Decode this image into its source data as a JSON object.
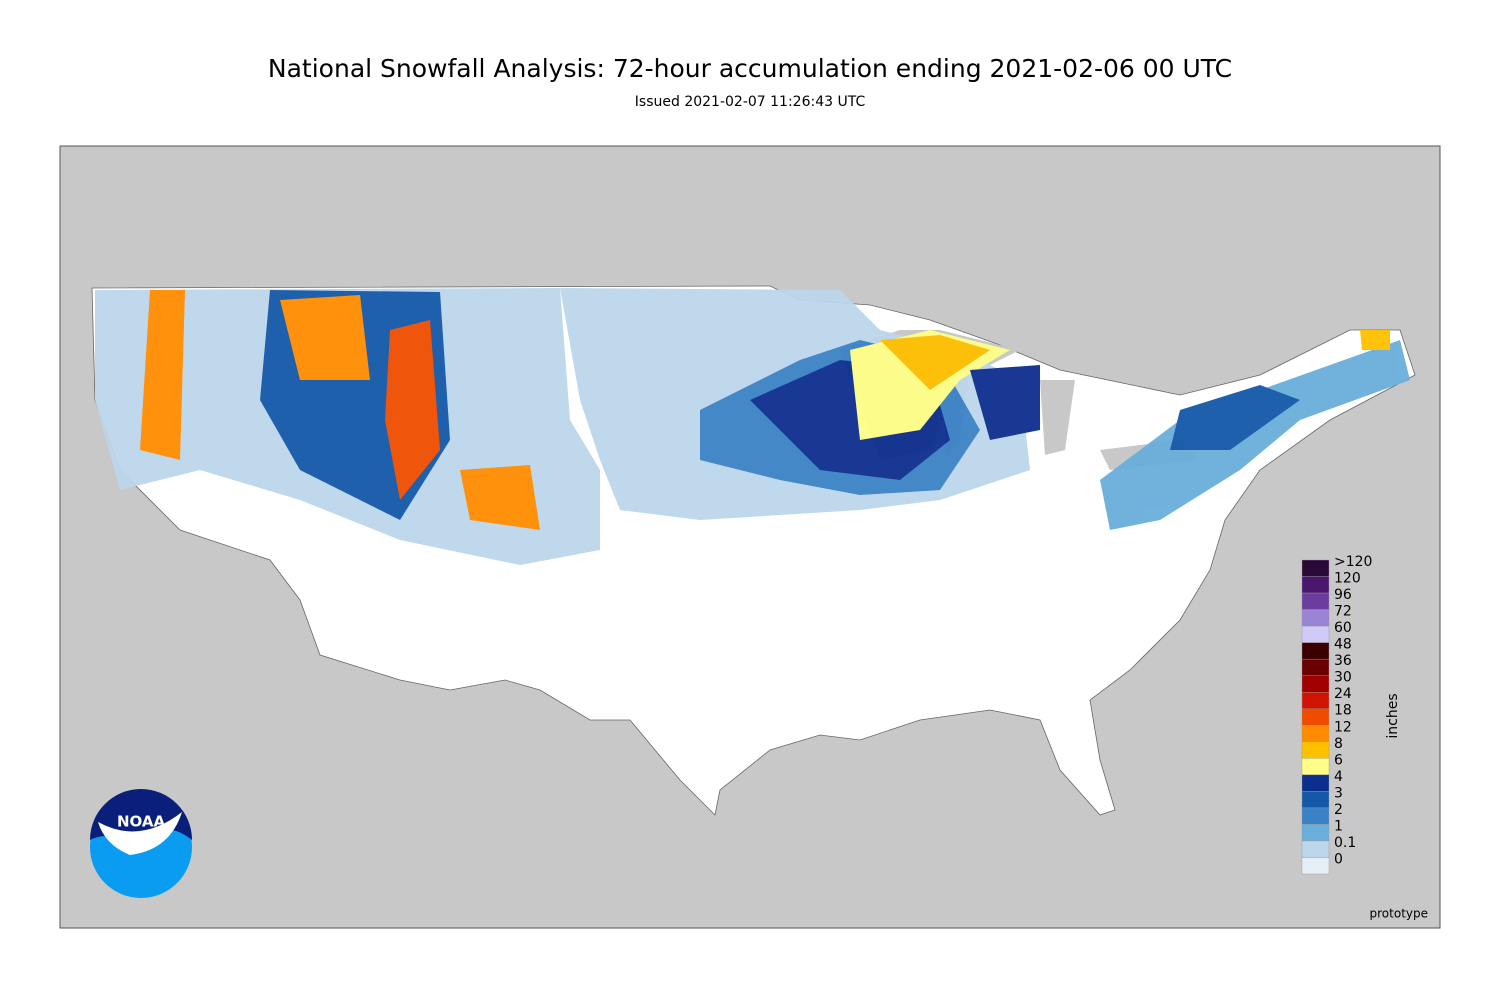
{
  "header": {
    "title": "National Snowfall Analysis: 72-hour accumulation ending 2021-02-06 00 UTC",
    "subtitle": "Issued 2021-02-07 11:26:43 UTC"
  },
  "legend": {
    "unit": "inches",
    "items": [
      {
        "label": ">120",
        "color": "#2a0838"
      },
      {
        "label": "120",
        "color": "#4a1670"
      },
      {
        "label": "96",
        "color": "#6c3c9e"
      },
      {
        "label": "72",
        "color": "#9a84d4"
      },
      {
        "label": "60",
        "color": "#cfcaf6"
      },
      {
        "label": "48",
        "color": "#3a0000"
      },
      {
        "label": "36",
        "color": "#6a0000"
      },
      {
        "label": "30",
        "color": "#a00000"
      },
      {
        "label": "24",
        "color": "#d01400"
      },
      {
        "label": "18",
        "color": "#f04c00"
      },
      {
        "label": "12",
        "color": "#ff8c00"
      },
      {
        "label": "8",
        "color": "#ffc000"
      },
      {
        "label": "6",
        "color": "#ffff88"
      },
      {
        "label": "4",
        "color": "#0c2e8e"
      },
      {
        "label": "3",
        "color": "#1458a8"
      },
      {
        "label": "2",
        "color": "#3a82c6"
      },
      {
        "label": "1",
        "color": "#6aaedc"
      },
      {
        "label": "0.1",
        "color": "#bcd6ea"
      },
      {
        "label": "0",
        "color": "#e6eff7"
      }
    ]
  },
  "logo": {
    "text": "NOAA"
  },
  "footer": {
    "note": "prototype"
  }
}
